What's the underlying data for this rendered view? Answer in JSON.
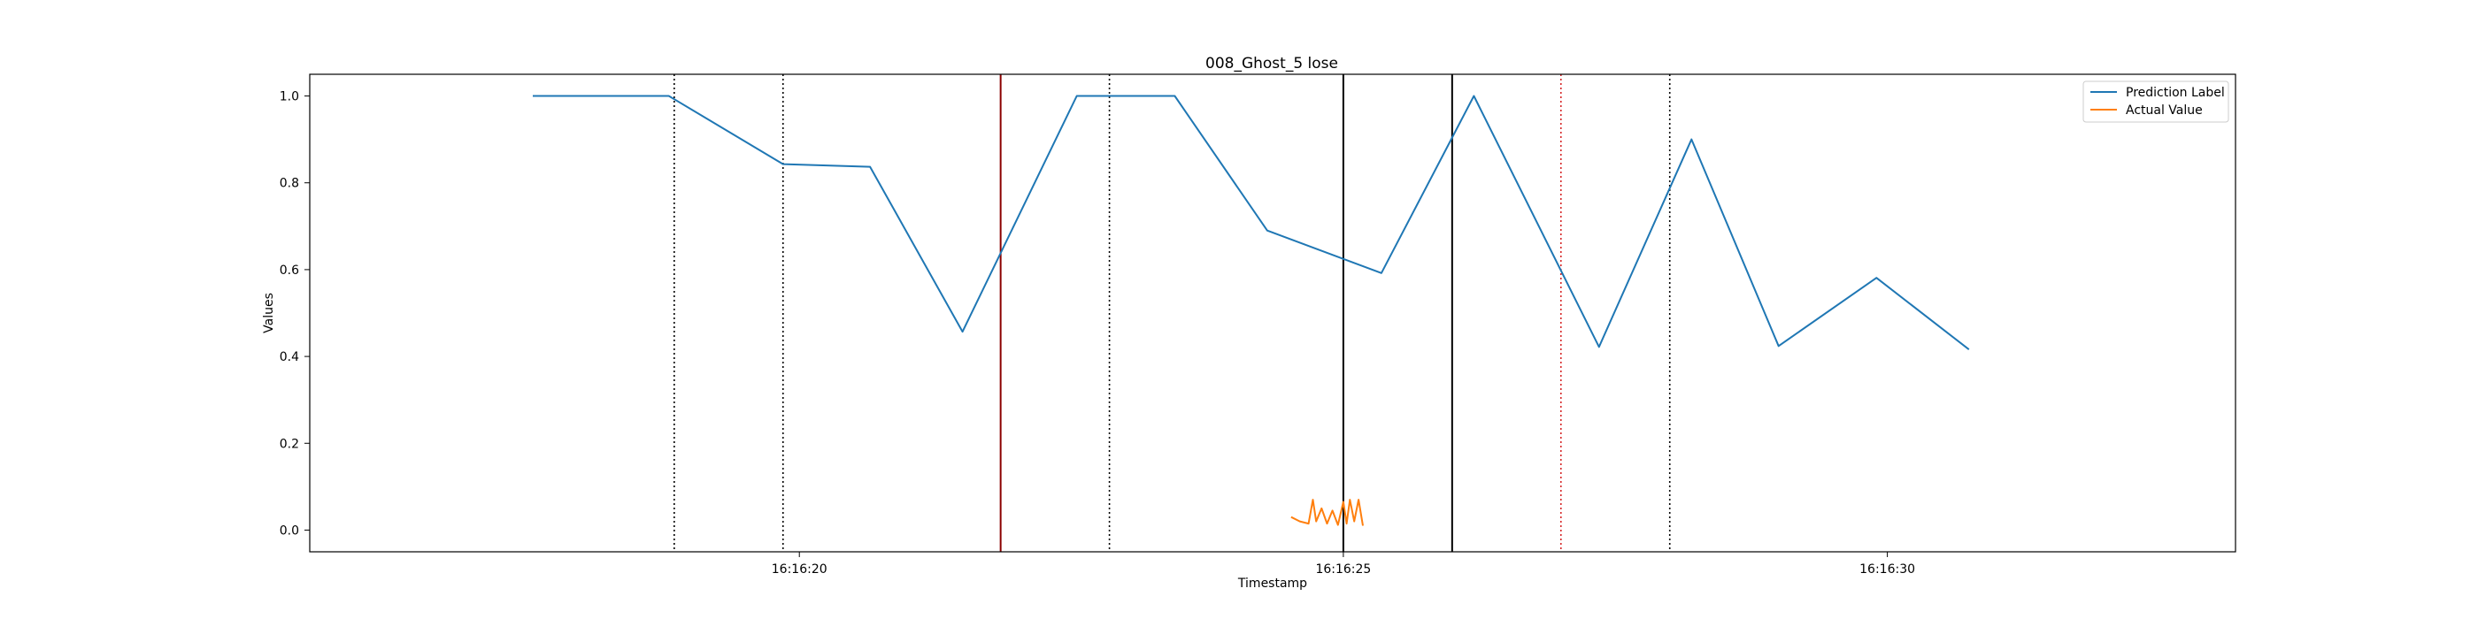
{
  "chart_data": {
    "type": "line",
    "title": "008_Ghost_5 lose",
    "xlabel": "Timestamp",
    "ylabel": "Values",
    "xlim_seconds": [
      15.5,
      33.2
    ],
    "ylim": [
      -0.05,
      1.05
    ],
    "x_ticks": [
      {
        "t": 20,
        "label": "16:16:20"
      },
      {
        "t": 25,
        "label": "16:16:25"
      },
      {
        "t": 30,
        "label": "16:16:30"
      }
    ],
    "y_ticks": [
      {
        "v": 0.0,
        "label": "0.0"
      },
      {
        "v": 0.2,
        "label": "0.2"
      },
      {
        "v": 0.4,
        "label": "0.4"
      },
      {
        "v": 0.6,
        "label": "0.6"
      },
      {
        "v": 0.8,
        "label": "0.8"
      },
      {
        "v": 1.0,
        "label": "1.0"
      }
    ],
    "legend_position": "top-right",
    "series": [
      {
        "name": "Prediction Label",
        "color": "#1f77b4",
        "x": [
          17.55,
          18.8,
          19.85,
          20.65,
          21.5,
          22.55,
          23.45,
          24.3,
          25.35,
          26.2,
          27.35,
          28.2,
          29.0,
          29.9,
          30.75
        ],
        "y": [
          1.0,
          1.0,
          0.843,
          0.837,
          0.457,
          1.0,
          1.0,
          0.69,
          0.592,
          1.0,
          0.422,
          0.9,
          0.424,
          0.581,
          0.416
        ]
      },
      {
        "name": "Actual Value",
        "color": "#ff7f0e",
        "x": [
          24.52,
          24.6,
          24.68,
          24.72,
          24.75,
          24.8,
          24.85,
          24.9,
          24.95,
          25.0,
          25.03,
          25.06,
          25.1,
          25.14,
          25.18
        ],
        "y": [
          0.03,
          0.02,
          0.015,
          0.07,
          0.02,
          0.05,
          0.015,
          0.045,
          0.012,
          0.065,
          0.015,
          0.07,
          0.02,
          0.07,
          0.01
        ]
      }
    ],
    "vertical_lines": [
      {
        "t": 18.85,
        "color": "#000000",
        "style": "dotted"
      },
      {
        "t": 19.85,
        "color": "#000000",
        "style": "dotted"
      },
      {
        "t": 21.85,
        "color": "#8b0000",
        "style": "solid"
      },
      {
        "t": 22.85,
        "color": "#000000",
        "style": "dotted"
      },
      {
        "t": 25.0,
        "color": "#000000",
        "style": "solid"
      },
      {
        "t": 26.0,
        "color": "#000000",
        "style": "solid"
      },
      {
        "t": 27.0,
        "color": "#d62728",
        "style": "dotted"
      },
      {
        "t": 28.0,
        "color": "#000000",
        "style": "dotted"
      }
    ]
  }
}
